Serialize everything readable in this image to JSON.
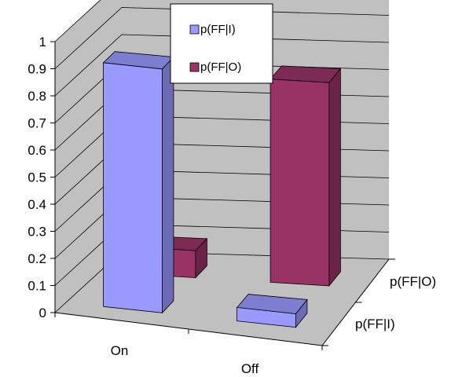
{
  "colors": {
    "fficolor": "#9999ff",
    "ffocolor": "#993366",
    "wall": "#c0c0c0",
    "floor": "#c0c0c0",
    "gridline": "#000000"
  },
  "chart_data": {
    "type": "bar",
    "subtype": "3d-column",
    "categories": [
      "On",
      "Off"
    ],
    "depth_categories": [
      "p(FF|I)",
      "p(FF|O)"
    ],
    "series": [
      {
        "name": "p(FF|I)",
        "values": [
          0.9,
          0.05
        ]
      },
      {
        "name": "p(FF|O)",
        "values": [
          0.1,
          0.75
        ]
      }
    ],
    "ylim": [
      0,
      1
    ],
    "yticks": [
      "0",
      "0.1",
      "0.2",
      "0.3",
      "0.4",
      "0.5",
      "0.6",
      "0.7",
      "0.8",
      "0.9",
      "1"
    ],
    "legend_position": "top-center",
    "grid": true
  }
}
